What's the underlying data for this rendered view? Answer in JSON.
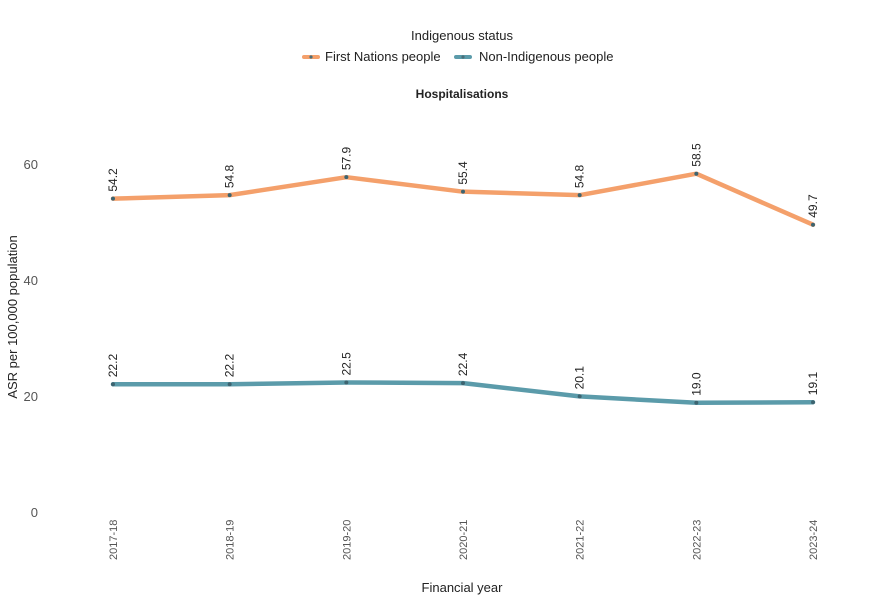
{
  "chart_data": {
    "type": "line",
    "title": "Hospitalisations",
    "xlabel": "Financial year",
    "ylabel": "ASR per 100,000 population",
    "ylim": [
      0,
      60
    ],
    "yticks": [
      0,
      20,
      40,
      60
    ],
    "grid": false,
    "legend": {
      "title": "Indigenous status",
      "placement": "top-center"
    },
    "categories": [
      "2017-18",
      "2018-19",
      "2019-20",
      "2020-21",
      "2021-22",
      "2022-23",
      "2023-24"
    ],
    "series": [
      {
        "name": "First Nations people",
        "color": "#F4A06B",
        "values": [
          54.2,
          54.8,
          57.9,
          55.4,
          54.8,
          58.5,
          49.7
        ],
        "labels": [
          "54.2",
          "54.8",
          "57.9",
          "55.4",
          "54.8",
          "58.5",
          "49.7"
        ]
      },
      {
        "name": "Non-Indigenous people",
        "color": "#5B9BAA",
        "values": [
          22.2,
          22.2,
          22.5,
          22.4,
          20.1,
          19.0,
          19.1
        ],
        "labels": [
          "22.2",
          "22.2",
          "22.5",
          "22.4",
          "20.1",
          "19.0",
          "19.1"
        ]
      }
    ]
  }
}
